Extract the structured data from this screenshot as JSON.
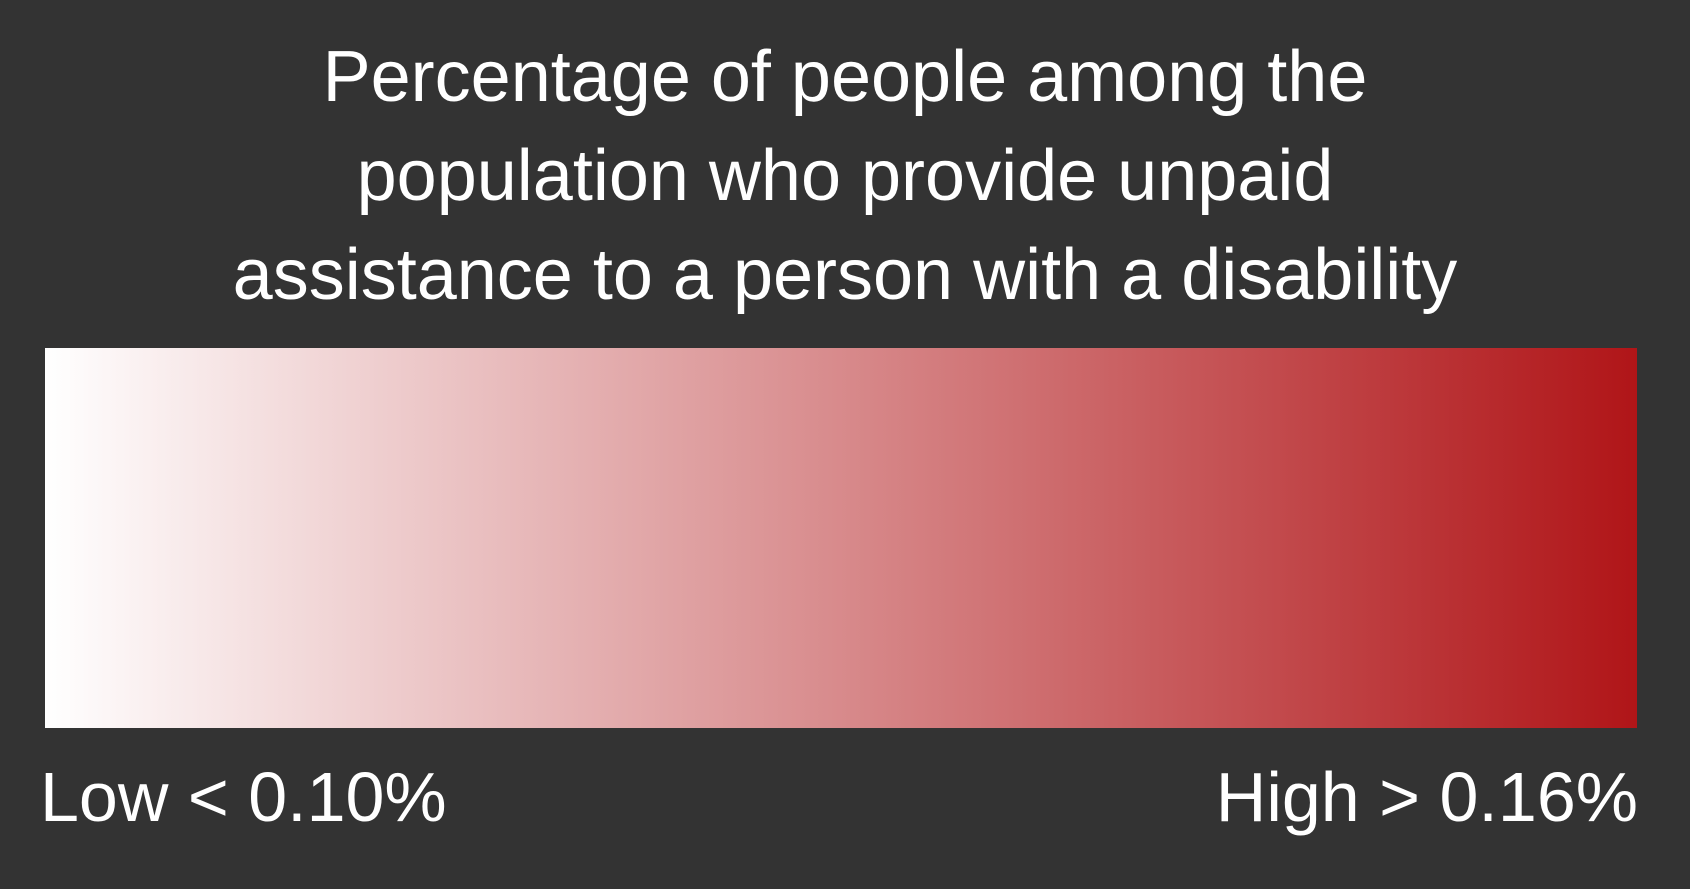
{
  "legend": {
    "title_lines": [
      "Percentage of people among the",
      "population who provide unpaid",
      "assistance to a person with a disability"
    ],
    "low_label": "Low < 0.10%",
    "high_label": "High > 0.16%",
    "colors": {
      "background": "#333333",
      "text": "#ffffff",
      "ramp_start": "#ffffff",
      "ramp_end": "#b01518"
    }
  }
}
